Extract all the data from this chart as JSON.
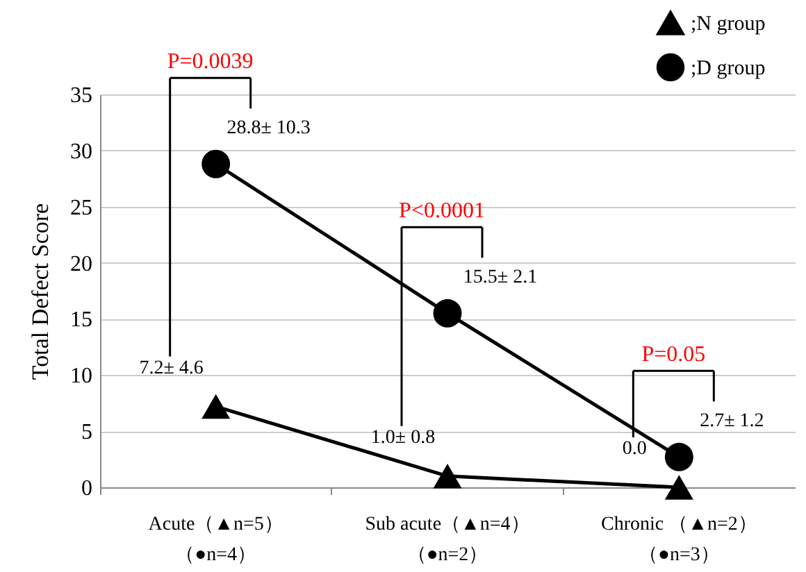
{
  "chart_data": {
    "type": "line",
    "ylabel": "Total Defect Score",
    "categories": [
      "Acute（▲n=5）（●n=4）",
      "Sub  acute（▲n=4）（●n=2）",
      "Chronic （▲n=2）（●n=3）"
    ],
    "series": [
      {
        "name": ";N group",
        "color": "#000000",
        "marker": "triangle",
        "values": [
          7.2,
          1.0,
          0.0
        ],
        "value_labels": [
          "7.2± 4.6",
          "1.0± 0.8",
          "0.0"
        ]
      },
      {
        "name": ";D group",
        "color": "#000000",
        "marker": "circle",
        "values": [
          28.8,
          15.5,
          2.7
        ],
        "value_labels": [
          "28.8± 10.3",
          "15.5± 2.1",
          "2.7± 1.2"
        ]
      }
    ],
    "annotations": [
      "P=0.0039",
      "P<0.0001",
      "P=0.05"
    ],
    "ylim": [
      0,
      35
    ],
    "yticks": [
      0,
      5,
      10,
      15,
      20,
      25,
      30,
      35
    ],
    "grid": "y",
    "legend": "top right",
    "line_style": "solid"
  }
}
